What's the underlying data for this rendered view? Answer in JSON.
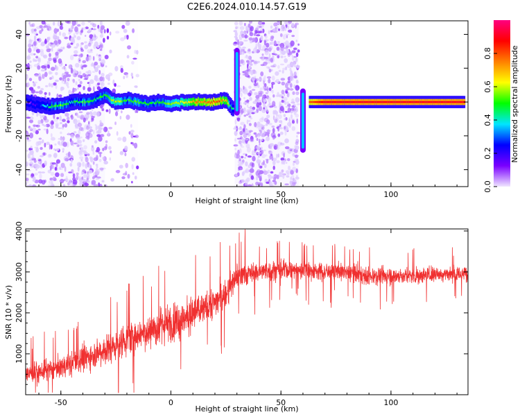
{
  "figure": {
    "title": "C2E6.2024.010.14.57.G19"
  },
  "chart_data": [
    {
      "type": "heatmap",
      "title": "C2E6.2024.010.14.57.G19",
      "xlabel": "Height of straight line (km)",
      "ylabel": "Frequency (Hz)",
      "xlim": [
        -66,
        135
      ],
      "ylim": [
        -50,
        48
      ],
      "x_ticks": [
        -50,
        0,
        50,
        100
      ],
      "y_ticks": [
        -40,
        -20,
        0,
        20,
        40
      ],
      "colorbar": {
        "label": "Normalized spectral amplitude",
        "range": [
          0,
          1
        ],
        "ticks": [
          "0.0",
          "0.2",
          "0.4",
          "0.6",
          "0.8"
        ],
        "colors": [
          "#f0e6ff",
          "#7a00ff",
          "#0000ff",
          "#00e5ff",
          "#00ff00",
          "#ffff00",
          "#ff8000",
          "#ff0000",
          "#ff0080"
        ]
      },
      "ridge": [
        [
          -66,
          0,
          0.0
        ],
        [
          -55,
          -3,
          0.45
        ],
        [
          -50,
          -2,
          0.55
        ],
        [
          -45,
          0,
          0.45
        ],
        [
          -40,
          0,
          0.5
        ],
        [
          -35,
          1,
          0.45
        ],
        [
          -30,
          4,
          0.5
        ],
        [
          -25,
          0,
          0.6
        ],
        [
          -20,
          1,
          0.5
        ],
        [
          -15,
          0,
          0.55
        ],
        [
          -10,
          -1,
          0.45
        ],
        [
          -5,
          0,
          0.5
        ],
        [
          0,
          -1,
          0.55
        ],
        [
          5,
          0,
          0.6
        ],
        [
          10,
          0,
          0.7
        ],
        [
          15,
          0,
          0.75
        ],
        [
          20,
          0,
          0.8
        ],
        [
          25,
          1,
          0.7
        ],
        [
          28,
          -4,
          0.4
        ],
        [
          63,
          0,
          0.8
        ],
        [
          70,
          0,
          0.9
        ],
        [
          80,
          0,
          0.9
        ],
        [
          90,
          0,
          0.9
        ],
        [
          100,
          0,
          0.9
        ],
        [
          110,
          0,
          0.9
        ],
        [
          120,
          0,
          0.9
        ],
        [
          133,
          0,
          0.9
        ]
      ],
      "noise_bands": [
        {
          "x_start": -66,
          "x_end": -30,
          "density": 0.8
        },
        {
          "x_start": -30,
          "x_end": -15,
          "density": 0.25
        },
        {
          "x_start": 29,
          "x_end": 58,
          "density": 1.0
        }
      ],
      "fades": [
        {
          "x": 30,
          "y_min": -8,
          "y_max": 32
        },
        {
          "x": 60,
          "y_min": -30,
          "y_max": 8
        }
      ]
    },
    {
      "type": "line",
      "xlabel": "Height of straight line (km)",
      "ylabel": "SNR (10 * v/v)",
      "xlim": [
        -66,
        135
      ],
      "ylim": [
        0,
        4050
      ],
      "x_ticks": [
        -50,
        0,
        50,
        100
      ],
      "y_ticks": [
        1000,
        2000,
        3000,
        4000
      ],
      "color": "#f03030",
      "trend": [
        [
          -66,
          500
        ],
        [
          -55,
          600
        ],
        [
          -45,
          750
        ],
        [
          -35,
          1000
        ],
        [
          -25,
          1200
        ],
        [
          -15,
          1500
        ],
        [
          -5,
          1650
        ],
        [
          5,
          1850
        ],
        [
          15,
          2100
        ],
        [
          25,
          2450
        ],
        [
          30,
          2900
        ],
        [
          40,
          3000
        ],
        [
          50,
          3050
        ],
        [
          60,
          3050
        ],
        [
          70,
          3000
        ],
        [
          80,
          3000
        ],
        [
          90,
          2900
        ],
        [
          100,
          2900
        ],
        [
          110,
          2900
        ],
        [
          120,
          2950
        ],
        [
          135,
          2950
        ]
      ],
      "spread": [
        [
          -66,
          400
        ],
        [
          -30,
          700
        ],
        [
          0,
          900
        ],
        [
          25,
          700
        ],
        [
          40,
          450
        ],
        [
          135,
          350
        ]
      ]
    }
  ]
}
